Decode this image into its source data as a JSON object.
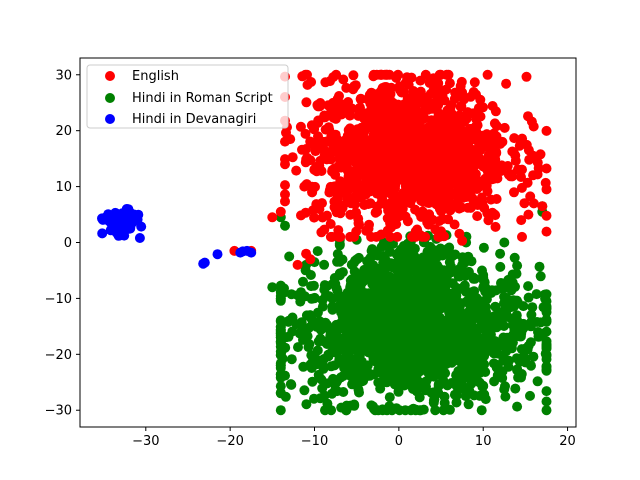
{
  "chart_data": {
    "type": "scatter",
    "title": "",
    "xlabel": "",
    "ylabel": "",
    "xlim": [
      -37.8,
      21
    ],
    "ylim": [
      -33,
      33
    ],
    "xticks": [
      -30,
      -20,
      -10,
      0,
      10,
      20
    ],
    "yticks": [
      -30,
      -20,
      -10,
      0,
      10,
      20,
      30
    ],
    "xtick_labels": [
      "−30",
      "−20",
      "−10",
      "0",
      "10",
      "20"
    ],
    "ytick_labels": [
      "−30",
      "−20",
      "−10",
      "0",
      "10",
      "20",
      "30"
    ],
    "grid": false,
    "legend_position": "top-left",
    "series": [
      {
        "name": "English",
        "color": "#ff0000",
        "clusters": [
          {
            "cx": 1.0,
            "cy": 16.0,
            "sx": 6.0,
            "sy": 6.5,
            "n": 1400,
            "xmin": -13.5,
            "xmax": 17.5,
            "ymin": 1,
            "ymax": 30
          }
        ],
        "points": [
          [
            -19.5,
            -1.5
          ],
          [
            -17.5,
            -1.5
          ],
          [
            -11,
            -2
          ],
          [
            -10.5,
            -3
          ],
          [
            -12,
            -4
          ],
          [
            7.5,
            0.3
          ],
          [
            5,
            2
          ],
          [
            3.5,
            3.2
          ],
          [
            14.5,
            4
          ],
          [
            17,
            6.5
          ],
          [
            16,
            7
          ],
          [
            -14,
            5.5
          ],
          [
            -15,
            4.5
          ]
        ]
      },
      {
        "name": "Hindi in Roman Script",
        "color": "#008000",
        "clusters": [
          {
            "cx": 1.5,
            "cy": -16.5,
            "sx": 7.5,
            "sy": 6.0,
            "n": 1500,
            "xmin": -14,
            "xmax": 17.5,
            "ymin": -30,
            "ymax": 0
          },
          {
            "cx": 1.0,
            "cy": -5.0,
            "sx": 3.5,
            "sy": 3.0,
            "n": 220,
            "xmin": -7,
            "xmax": 10,
            "ymin": -12,
            "ymax": 3
          }
        ],
        "points": [
          [
            -15,
            -8
          ],
          [
            -11,
            -4
          ],
          [
            -10,
            -3.5
          ],
          [
            -13,
            -2.5
          ],
          [
            -7,
            -0.5
          ],
          [
            -5,
            0.5
          ],
          [
            -14,
            4.5
          ],
          [
            -13.5,
            3
          ],
          [
            17,
            5.5
          ],
          [
            17,
            6.5
          ],
          [
            16.5,
            -16
          ],
          [
            12.5,
            0
          ],
          [
            12,
            -2
          ]
        ]
      },
      {
        "name": "Hindi in Devanagiri",
        "color": "#0000ff",
        "clusters": [
          {
            "cx": -33.0,
            "cy": 3.6,
            "sx": 0.9,
            "sy": 1.0,
            "n": 160,
            "xmin": -35.5,
            "xmax": -30,
            "ymin": 0.8,
            "ymax": 6
          }
        ],
        "points": [
          [
            -23,
            -3.6
          ],
          [
            -23.2,
            -3.8
          ],
          [
            -21.5,
            -2.1
          ],
          [
            -18.5,
            -1.6
          ],
          [
            -18,
            -1.5
          ],
          [
            -17.5,
            -1.8
          ],
          [
            -18.8,
            -1.8
          ]
        ]
      }
    ]
  }
}
